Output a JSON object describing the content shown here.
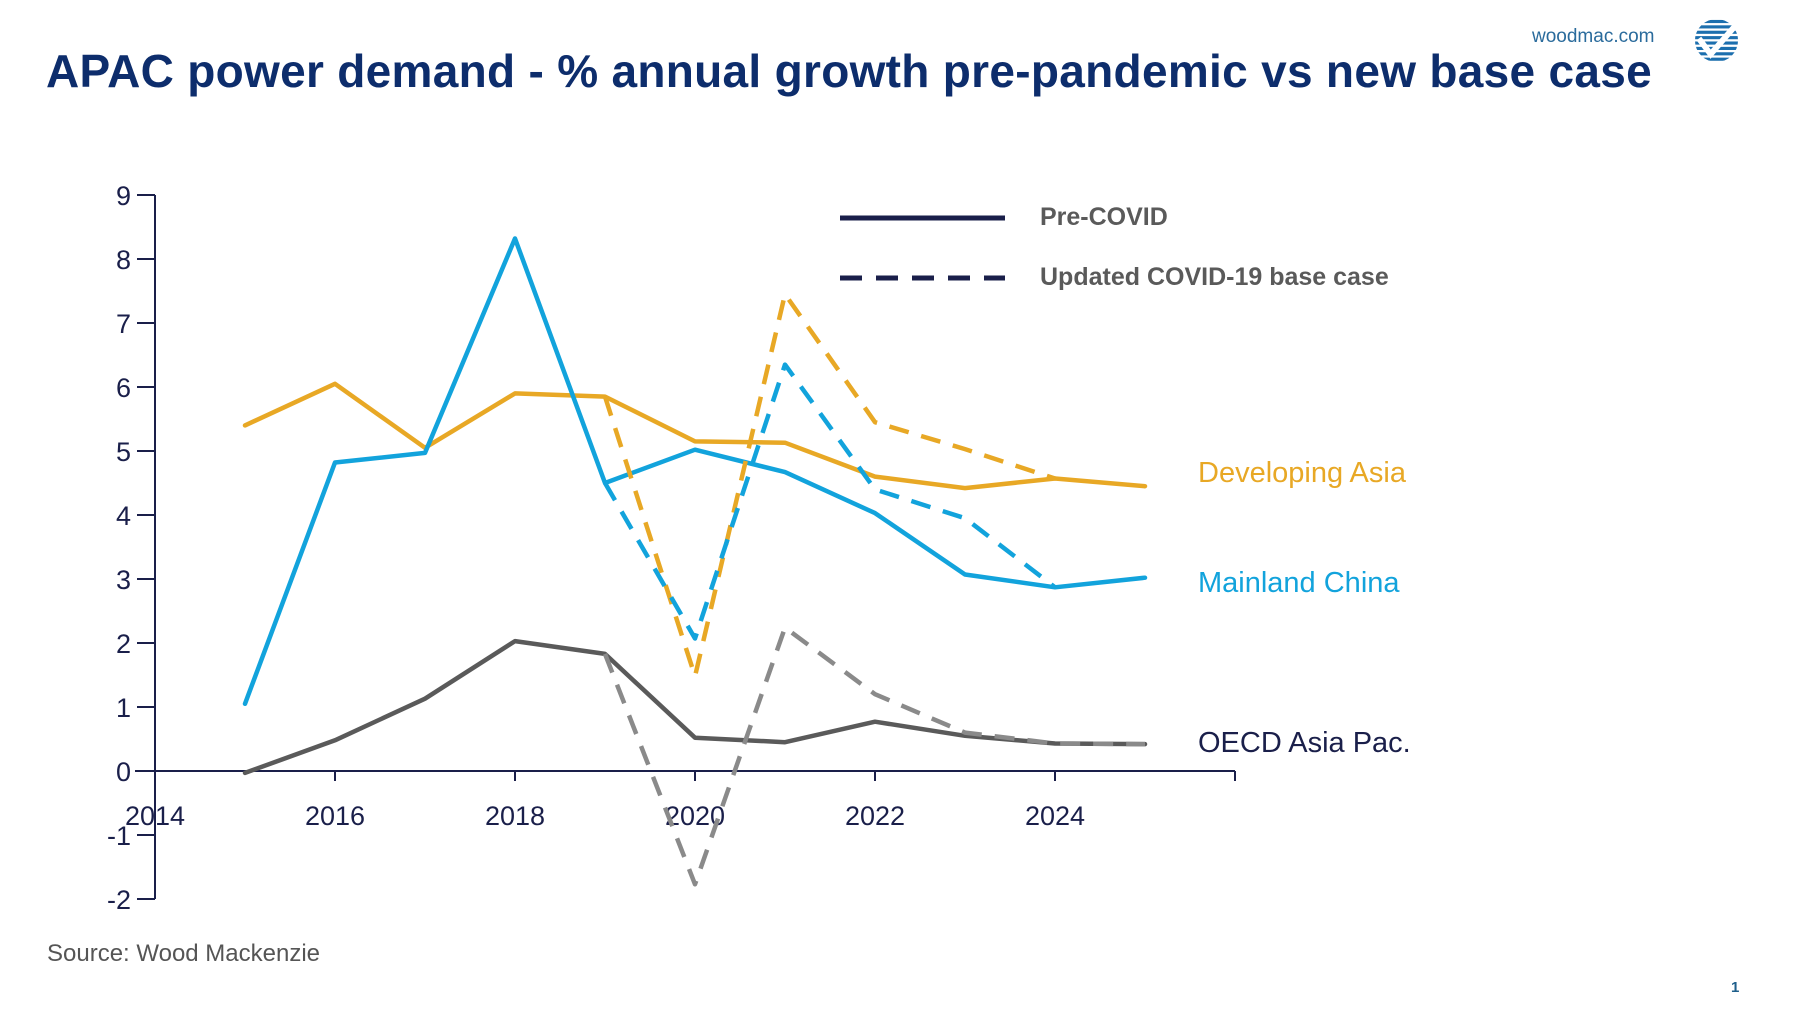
{
  "header": {
    "title": "APAC power demand - % annual growth pre-pandemic vs new base case",
    "site": "woodmac.com",
    "logo_icon": "woodmac-globe-check-icon"
  },
  "footer": {
    "source": "Source: Wood Mackenzie",
    "page_number": "1"
  },
  "colors": {
    "title": "#0d2d6c",
    "axis": "#1a1f4a",
    "developing_asia": "#e8a825",
    "mainland_china": "#12a3dc",
    "oecd_asia_pac": "#5a5a5a",
    "oecd_label": "#1a1f4a",
    "legend_line": "#1a1f4a"
  },
  "chart_data": {
    "type": "line",
    "title": "APAC power demand - % annual growth pre-pandemic vs new base case",
    "xlabel": "",
    "ylabel": "",
    "xlim": [
      2014,
      2026
    ],
    "ylim": [
      -2,
      9
    ],
    "x_ticks": [
      2014,
      2016,
      2018,
      2020,
      2022,
      2024
    ],
    "x_tick_labels": [
      "2014",
      "2016",
      "2018",
      "2020",
      "2022",
      "2024"
    ],
    "y_ticks": [
      -2,
      -1,
      0,
      1,
      2,
      3,
      4,
      5,
      6,
      7,
      8,
      9
    ],
    "y_tick_labels": [
      "-2",
      "-1",
      "0",
      "1",
      "2",
      "3",
      "4",
      "5",
      "6",
      "7",
      "8",
      "9"
    ],
    "grid": false,
    "legend": {
      "placement": "top-center",
      "entries": [
        {
          "label": "Pre-COVID",
          "style": "solid"
        },
        {
          "label": "Updated COVID-19 base case",
          "style": "dashed"
        }
      ]
    },
    "series": [
      {
        "name": "Developing Asia",
        "color_key": "developing_asia",
        "label_color_key": "developing_asia",
        "pre_covid": {
          "x": [
            2015,
            2016,
            2017,
            2018,
            2019,
            2020,
            2021,
            2022,
            2023,
            2024,
            2025
          ],
          "y": [
            5.4,
            6.05,
            5.05,
            5.9,
            5.85,
            5.15,
            5.13,
            4.6,
            4.42,
            4.57,
            4.45
          ]
        },
        "covid_base_case": {
          "x": [
            2019,
            2020,
            2021,
            2022,
            2023,
            2024
          ],
          "y": [
            5.85,
            1.48,
            7.45,
            5.45,
            5.03,
            4.57
          ]
        }
      },
      {
        "name": "Mainland China",
        "color_key": "mainland_china",
        "label_color_key": "mainland_china",
        "pre_covid": {
          "x": [
            2015,
            2016,
            2017,
            2018,
            2019,
            2020,
            2021,
            2022,
            2023,
            2024,
            2025
          ],
          "y": [
            1.05,
            4.82,
            4.97,
            8.32,
            4.5,
            5.02,
            4.67,
            4.03,
            3.07,
            2.87,
            3.02
          ]
        },
        "covid_base_case": {
          "x": [
            2019,
            2020,
            2021,
            2022,
            2023,
            2024
          ],
          "y": [
            4.5,
            2.07,
            6.35,
            4.4,
            3.95,
            2.87
          ]
        }
      },
      {
        "name": "OECD Asia Pac.",
        "color_key": "oecd_asia_pac",
        "label_color_key": "oecd_label",
        "pre_covid": {
          "x": [
            2015,
            2016,
            2017,
            2018,
            2019,
            2020,
            2021,
            2022,
            2023,
            2024,
            2025
          ],
          "y": [
            -0.03,
            0.48,
            1.13,
            2.03,
            1.83,
            0.52,
            0.45,
            0.77,
            0.55,
            0.43,
            0.42
          ]
        },
        "covid_base_case": {
          "x": [
            2019,
            2020,
            2021,
            2022,
            2023,
            2024,
            2025
          ],
          "y": [
            1.83,
            -1.77,
            2.24,
            1.2,
            0.6,
            0.43,
            0.42
          ]
        }
      }
    ]
  }
}
